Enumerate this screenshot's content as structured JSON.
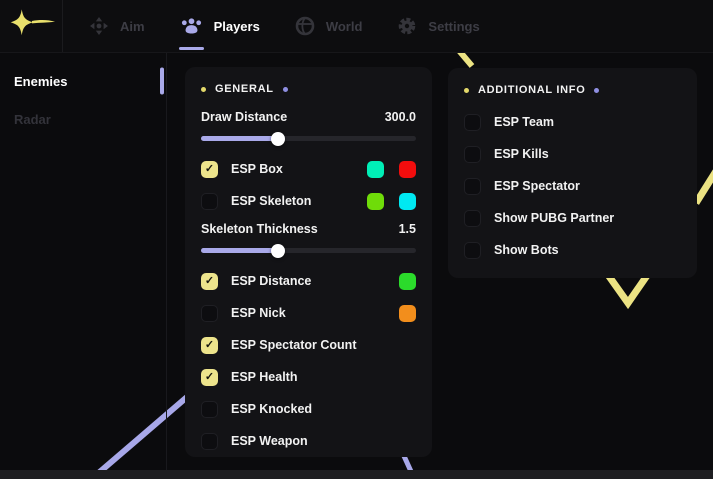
{
  "topbar": {
    "tabs": [
      {
        "label": "Aim",
        "icon": "aim-icon",
        "active": false
      },
      {
        "label": "Players",
        "icon": "players-icon",
        "active": true
      },
      {
        "label": "World",
        "icon": "world-icon",
        "active": false
      },
      {
        "label": "Settings",
        "icon": "settings-icon",
        "active": false
      }
    ],
    "logo_icon": "sparkle-icon"
  },
  "sidebar": {
    "items": [
      {
        "label": "Enemies",
        "active": true
      },
      {
        "label": "Radar",
        "active": false
      }
    ]
  },
  "general_panel": {
    "title": "GENERAL",
    "rows": [
      {
        "type": "slider",
        "label": "Draw Distance",
        "value": "300.0",
        "percent": 36
      },
      {
        "type": "check",
        "label": "ESP Box",
        "checked": true,
        "swatches": [
          "#00EFB7",
          "#F20D0D"
        ]
      },
      {
        "type": "check",
        "label": "ESP Skeleton",
        "checked": false,
        "swatches": [
          "#6FDC09",
          "#00E9F2"
        ]
      },
      {
        "type": "slider",
        "label": "Skeleton Thickness",
        "value": "1.5",
        "percent": 36
      },
      {
        "type": "check",
        "label": "ESP Distance",
        "checked": true,
        "swatches": [
          "#2BDB2B"
        ]
      },
      {
        "type": "check",
        "label": "ESP Nick",
        "checked": false,
        "swatches": [
          "#F28E1C"
        ]
      },
      {
        "type": "check",
        "label": "ESP Spectator Count",
        "checked": true,
        "swatches": []
      },
      {
        "type": "check",
        "label": "ESP Health",
        "checked": true,
        "swatches": []
      },
      {
        "type": "check",
        "label": "ESP Knocked",
        "checked": false,
        "swatches": []
      },
      {
        "type": "check",
        "label": "ESP Weapon",
        "checked": false,
        "swatches": []
      }
    ]
  },
  "additional_panel": {
    "title": "ADDITIONAL INFO",
    "rows": [
      {
        "type": "check",
        "label": "ESP Team",
        "checked": false,
        "swatches": []
      },
      {
        "type": "check",
        "label": "ESP Kills",
        "checked": false,
        "swatches": []
      },
      {
        "type": "check",
        "label": "ESP Spectator",
        "checked": false,
        "swatches": []
      },
      {
        "type": "check",
        "label": "Show PUBG Partner",
        "checked": false,
        "swatches": []
      },
      {
        "type": "check",
        "label": "Show Bots",
        "checked": false,
        "swatches": []
      }
    ]
  },
  "colors": {
    "background": "#0B0B0D",
    "panel_background": "#131316",
    "accent_purple": "#A9A9E9",
    "accent_yellow": "#EDE48C",
    "header_dot_left": "#E3D86A",
    "header_dot_right": "#8F8FE2",
    "checkbox_checked": "#EDE48C",
    "slider_fill": "#A9A9E9",
    "slider_thumb": "#FFFFFF",
    "active_text": "#FFFFFF",
    "inactive_text": "#3D3D45"
  }
}
